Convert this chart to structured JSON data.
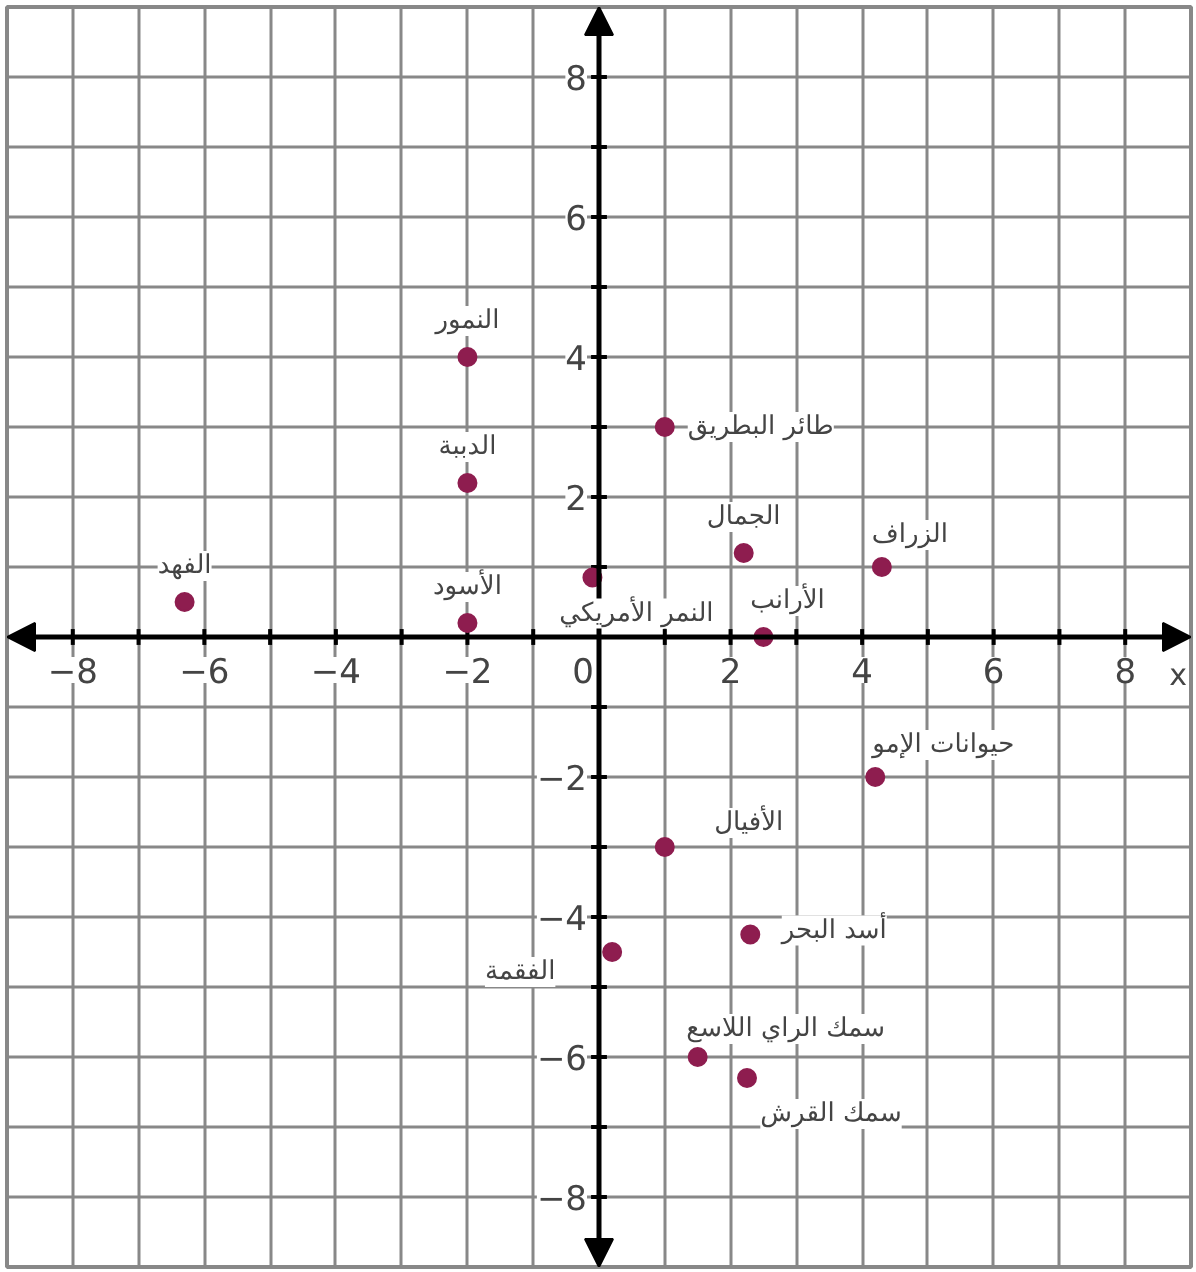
{
  "chart_data": {
    "type": "scatter",
    "xlabel": "x",
    "color": "#8e1d4f",
    "marker": "circle",
    "grid": true,
    "xlim": [
      -9,
      9
    ],
    "ylim": [
      -9,
      9
    ],
    "xticks": [
      {
        "value": -8,
        "label": "−8"
      },
      {
        "value": -7,
        "label": null
      },
      {
        "value": -6,
        "label": "−6"
      },
      {
        "value": -5,
        "label": null
      },
      {
        "value": -4,
        "label": "−4"
      },
      {
        "value": -3,
        "label": null
      },
      {
        "value": -2,
        "label": "−2"
      },
      {
        "value": -1,
        "label": null
      },
      0,
      {
        "value": 1,
        "label": null
      },
      2,
      {
        "value": 3,
        "label": null
      },
      4,
      {
        "value": 5,
        "label": null
      },
      6,
      {
        "value": 7,
        "label": null
      },
      8
    ],
    "yticks": [
      {
        "value": -8,
        "label": "−8"
      },
      {
        "value": -7,
        "label": null
      },
      {
        "value": -6,
        "label": "−6"
      },
      {
        "value": -5,
        "label": null
      },
      {
        "value": -4,
        "label": "−4"
      },
      {
        "value": -3,
        "label": null
      },
      {
        "value": -2,
        "label": "−2"
      },
      {
        "value": -1,
        "label": null
      },
      {
        "value": 1,
        "label": null
      },
      2,
      {
        "value": 3,
        "label": null
      },
      4,
      {
        "value": 5,
        "label": null
      },
      6,
      {
        "value": 7,
        "label": null
      },
      8
    ],
    "x": [
      -2,
      -2,
      -6.3,
      -2,
      -0.1,
      1,
      2.2,
      4.3,
      2.5,
      4.2,
      1,
      2.3,
      0.2,
      1.5,
      2.25
    ],
    "values": [
      4,
      2.2,
      0.5,
      0.2,
      0.85,
      3,
      1.2,
      1.0,
      0,
      -2,
      -3,
      -4.25,
      -4.5,
      -6,
      -6.3
    ],
    "annotations": [
      {
        "text": "النمور",
        "x": -2,
        "y": 4
      },
      {
        "text": "الدببة",
        "x": -2,
        "y": 2.2
      },
      {
        "text": "الفهد",
        "x": -6.3,
        "y": 0.5
      },
      {
        "text": "الأسود",
        "x": -2,
        "y": 0.2
      },
      {
        "text": "النمر الأمريكي",
        "x": -0.1,
        "y": 0.85
      },
      {
        "text": "طائر البطريق",
        "x": 1,
        "y": 3
      },
      {
        "text": "الجمال",
        "x": 2.2,
        "y": 1.2
      },
      {
        "text": "الزراف",
        "x": 4.3,
        "y": 1.0
      },
      {
        "text": "الأرانب",
        "x": 2.5,
        "y": 0
      },
      {
        "text": "حيوانات الإمو",
        "x": 4.2,
        "y": -2
      },
      {
        "text": "الأفيال",
        "x": 1,
        "y": -3
      },
      {
        "text": "أسد البحر",
        "x": 2.3,
        "y": -4.25
      },
      {
        "text": "الفقمة",
        "x": 0.2,
        "y": -4.5
      },
      {
        "text": "سمك الراي اللاسع",
        "x": 1.5,
        "y": -6
      },
      {
        "text": "سمك القرش",
        "x": 2.25,
        "y": -6.3
      }
    ]
  }
}
